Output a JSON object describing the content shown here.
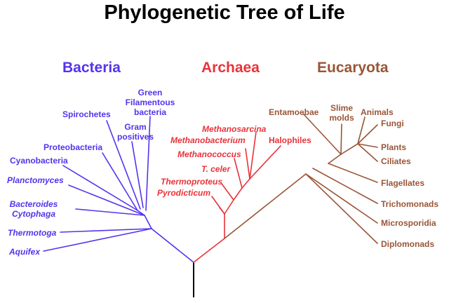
{
  "title": "Phylogenetic Tree of Life",
  "colors": {
    "bacteria": "#5533ee",
    "archaea": "#e8333a",
    "eucaryota": "#9a5536",
    "root": "#000000"
  },
  "domains": {
    "bacteria": "Bacteria",
    "archaea": "Archaea",
    "eucaryota": "Eucaryota"
  },
  "bacteria": {
    "green_filamentous": [
      "Green",
      "Filamentous",
      "bacteria"
    ],
    "spirochetes": "Spirochetes",
    "gram_positives": [
      "Gram",
      "positives"
    ],
    "proteobacteria": "Proteobacteria",
    "cyanobacteria": "Cyanobacteria",
    "planctomyces": "Planctomyces",
    "bacteroides": [
      "Bacteroides",
      "Cytophaga"
    ],
    "thermotoga": "Thermotoga",
    "aquifex": "Aquifex"
  },
  "archaea": {
    "methanosarcina": "Methanosarcina",
    "methanobacterium": "Methanobacterium",
    "halophiles": "Halophiles",
    "methanococcus": "Methanococcus",
    "t_celer": "T. celer",
    "thermoproteus": "Thermoproteus",
    "pyrodicticum": "Pyrodicticum"
  },
  "eucaryota": {
    "entamoebae": "Entamoebae",
    "slime_molds": [
      "Slime",
      "molds"
    ],
    "animals": "Animals",
    "fungi": "Fungi",
    "plants": "Plants",
    "ciliates": "Ciliates",
    "flagellates": "Flagellates",
    "trichomonads": "Trichomonads",
    "microsporidia": "Microsporidia",
    "diplomonads": "Diplomonads"
  }
}
